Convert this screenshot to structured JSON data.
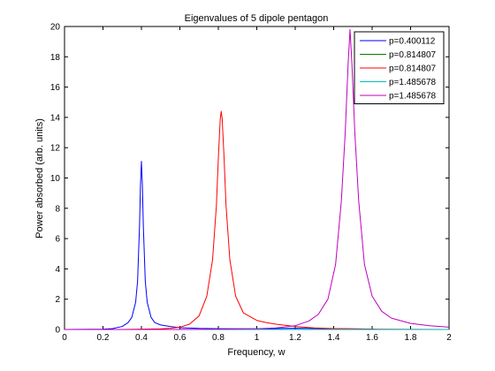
{
  "chart_data": {
    "type": "line",
    "title": "Eigenvalues of 5 dipole pentagon",
    "xlabel": "Frequency, w",
    "ylabel": "Power absorbed (arb. units)",
    "xlim": [
      0,
      2
    ],
    "ylim": [
      0,
      20
    ],
    "xticks": [
      0,
      0.2,
      0.4,
      0.6,
      0.8,
      1,
      1.2,
      1.4,
      1.6,
      1.8,
      2
    ],
    "xtick_labels": [
      "0",
      "0.2",
      "0.4",
      "0.6",
      "0.8",
      "1",
      "1.2",
      "1.4",
      "1.6",
      "1.8",
      "2"
    ],
    "yticks": [
      0,
      2,
      4,
      6,
      8,
      10,
      12,
      14,
      16,
      18,
      20
    ],
    "ytick_labels": [
      "0",
      "2",
      "4",
      "6",
      "8",
      "10",
      "12",
      "14",
      "16",
      "18",
      "20"
    ],
    "grid": false,
    "legend_position": "top-right",
    "series": [
      {
        "name": "p=0.400112",
        "color": "#0000ff",
        "x": [
          0,
          0.2,
          0.25,
          0.3,
          0.33,
          0.35,
          0.37,
          0.38,
          0.39,
          0.395,
          0.4,
          0.405,
          0.41,
          0.42,
          0.43,
          0.45,
          0.47,
          0.5,
          0.55,
          0.6,
          0.7,
          0.8,
          1.0,
          1.2,
          1.4,
          1.6,
          1.62,
          2.0
        ],
        "y": [
          0,
          0.02,
          0.06,
          0.2,
          0.45,
          0.8,
          1.8,
          3.2,
          6.8,
          9.5,
          11.1,
          9.5,
          6.8,
          3.2,
          1.8,
          0.8,
          0.45,
          0.3,
          0.2,
          0.12,
          0.07,
          0.05,
          0.04,
          0.08,
          0.05,
          0.03,
          0,
          0
        ]
      },
      {
        "name": "p=0.814807",
        "color": "#008000",
        "x": [
          0,
          2
        ],
        "y": [
          0,
          0
        ]
      },
      {
        "name": "p=0.814807",
        "color": "#ff0000",
        "x": [
          0,
          0.3,
          0.4,
          0.5,
          0.55,
          0.6,
          0.65,
          0.7,
          0.74,
          0.77,
          0.79,
          0.8,
          0.81,
          0.815,
          0.82,
          0.83,
          0.84,
          0.86,
          0.89,
          0.93,
          1.0,
          1.05,
          1.1,
          1.2,
          1.3,
          1.4,
          1.6,
          2.0
        ],
        "y": [
          0,
          0,
          0.02,
          0.04,
          0.08,
          0.15,
          0.35,
          0.9,
          2.2,
          4.6,
          8.2,
          11.3,
          13.9,
          14.4,
          13.9,
          11.3,
          8.2,
          4.6,
          2.2,
          1.1,
          0.6,
          0.45,
          0.35,
          0.2,
          0.1,
          0.06,
          0.02,
          0
        ]
      },
      {
        "name": "p=1.485678",
        "color": "#00bfbf",
        "x": [
          0,
          2
        ],
        "y": [
          0,
          0
        ]
      },
      {
        "name": "p=1.485678",
        "color": "#bf00bf",
        "x": [
          0,
          0.6,
          0.8,
          1.0,
          1.1,
          1.2,
          1.27,
          1.32,
          1.37,
          1.41,
          1.44,
          1.46,
          1.475,
          1.485,
          1.495,
          1.51,
          1.53,
          1.56,
          1.6,
          1.65,
          1.7,
          1.8,
          1.9,
          2.0
        ],
        "y": [
          0,
          0,
          0.02,
          0.05,
          0.1,
          0.25,
          0.55,
          1.0,
          2.0,
          4.3,
          8.5,
          13.0,
          17.5,
          19.8,
          17.5,
          13.0,
          8.5,
          4.3,
          2.2,
          1.2,
          0.75,
          0.4,
          0.25,
          0.15
        ]
      }
    ]
  }
}
